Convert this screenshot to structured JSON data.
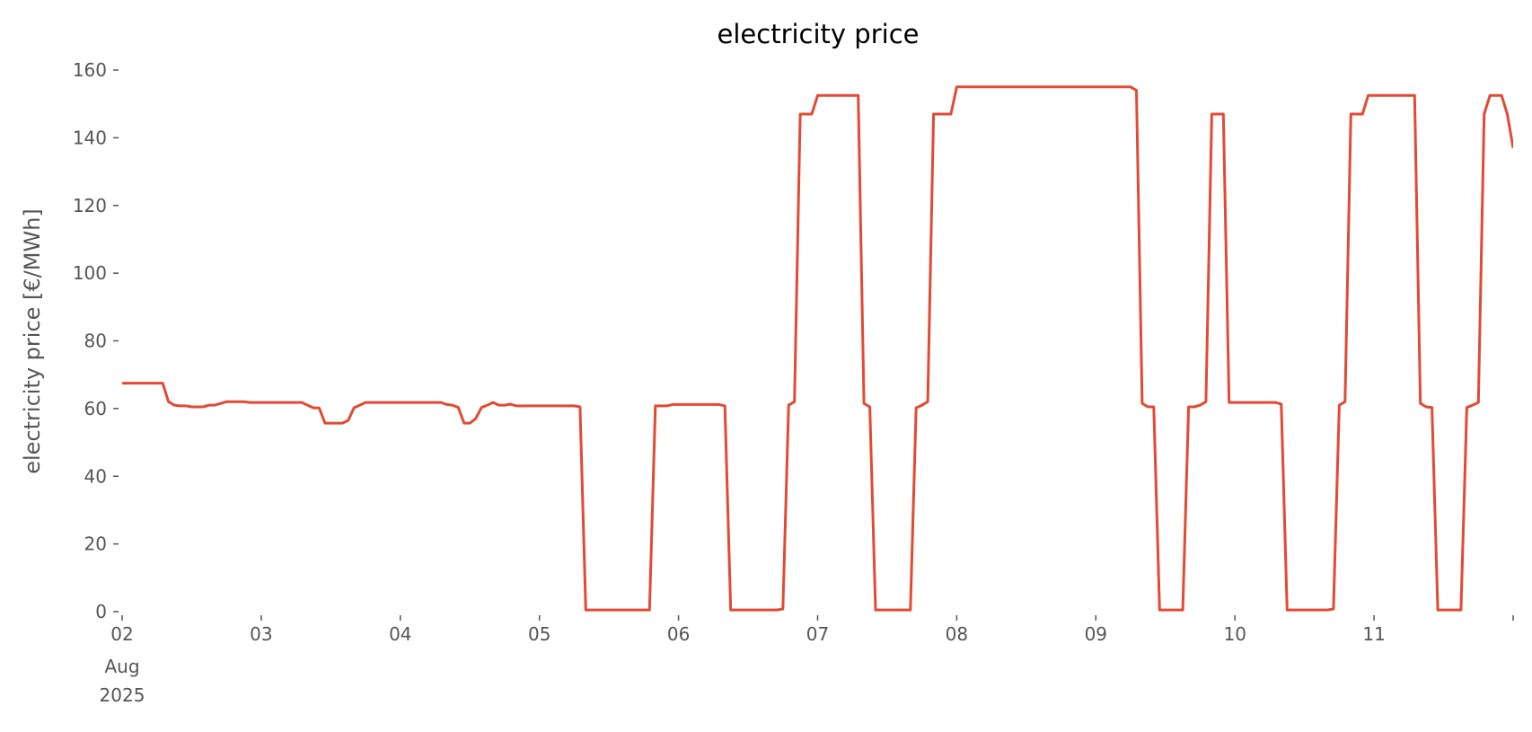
{
  "chart_data": {
    "type": "line",
    "title": "electricity price",
    "xlabel": "",
    "ylabel": "electricity price [€/MWh]",
    "ylim": [
      0,
      160
    ],
    "yticks": [
      0,
      20,
      40,
      60,
      80,
      100,
      120,
      140,
      160
    ],
    "xlim": [
      "2025-08-02 00:00",
      "2025-08-12 00:00"
    ],
    "xticks": [
      {
        "date": "2025-08-02",
        "label": "02",
        "sub1": "Aug",
        "sub2": "2025"
      },
      {
        "date": "2025-08-03",
        "label": "03"
      },
      {
        "date": "2025-08-04",
        "label": "04"
      },
      {
        "date": "2025-08-05",
        "label": "05"
      },
      {
        "date": "2025-08-06",
        "label": "06"
      },
      {
        "date": "2025-08-07",
        "label": "07"
      },
      {
        "date": "2025-08-08",
        "label": "08"
      },
      {
        "date": "2025-08-09",
        "label": "09"
      },
      {
        "date": "2025-08-10",
        "label": "10"
      },
      {
        "date": "2025-08-11",
        "label": "11"
      },
      {
        "date": "2025-08-12",
        "label": ""
      }
    ],
    "grid": false,
    "color": "#E24A33",
    "series": [
      {
        "start": "2025-08-02 00:00",
        "freq": "1h",
        "values": [
          67.5,
          67.5,
          67.5,
          67.5,
          67.5,
          67.5,
          67.5,
          67.5,
          62,
          61,
          60.8,
          60.8,
          60.5,
          60.5,
          60.5,
          61,
          61,
          61.5,
          62,
          62,
          62,
          62,
          61.8,
          61.8,
          61.8,
          61.8,
          61.8,
          61.8,
          61.8,
          61.8,
          61.8,
          61.8,
          61,
          60.2,
          60.2,
          55.7,
          55.7,
          55.7,
          55.7,
          56.5,
          60.2,
          61,
          61.8,
          61.8,
          61.8,
          61.8,
          61.8,
          61.8,
          61.8,
          61.8,
          61.8,
          61.8,
          61.8,
          61.8,
          61.8,
          61.8,
          61.2,
          61,
          60.3,
          55.7,
          55.7,
          57,
          60.3,
          61,
          61.8,
          61,
          61,
          61.3,
          60.8,
          60.8,
          60.8,
          60.8,
          60.8,
          60.8,
          60.8,
          60.8,
          60.8,
          60.8,
          60.8,
          60.5,
          0.5,
          0.5,
          0.5,
          0.5,
          0.5,
          0.5,
          0.5,
          0.5,
          0.5,
          0.5,
          0.5,
          0.5,
          60.8,
          60.8,
          60.8,
          61.2,
          61.2,
          61.2,
          61.2,
          61.2,
          61.2,
          61.2,
          61.2,
          61.2,
          60.8,
          0.5,
          0.5,
          0.5,
          0.5,
          0.5,
          0.5,
          0.5,
          0.5,
          0.5,
          0.8,
          61,
          62,
          147,
          147,
          147,
          152.5,
          152.5,
          152.5,
          152.5,
          152.5,
          152.5,
          152.5,
          152.5,
          61.5,
          60.5,
          0.5,
          0.5,
          0.5,
          0.5,
          0.5,
          0.5,
          0.5,
          60.2,
          61,
          62,
          147,
          147,
          147,
          147,
          155,
          155,
          155,
          155,
          155,
          155,
          155,
          155,
          155,
          155,
          155,
          155,
          155,
          155,
          155,
          155,
          155,
          155,
          155,
          155,
          155,
          155,
          155,
          155,
          155,
          155,
          155,
          155,
          155,
          155,
          155,
          154,
          61.5,
          60.5,
          60.5,
          0.5,
          0.5,
          0.5,
          0.5,
          0.5,
          60.5,
          60.5,
          61,
          62,
          147,
          147,
          147,
          61.8,
          61.8,
          61.8,
          61.8,
          61.8,
          61.8,
          61.8,
          61.8,
          61.8,
          61.3,
          0.5,
          0.5,
          0.5,
          0.5,
          0.5,
          0.5,
          0.5,
          0.5,
          0.8,
          61,
          62,
          147,
          147,
          147,
          152.5,
          152.5,
          152.5,
          152.5,
          152.5,
          152.5,
          152.5,
          152.5,
          152.5,
          61.5,
          60.5,
          60.3,
          0.5,
          0.5,
          0.5,
          0.5,
          0.5,
          60.3,
          61,
          61.8,
          147,
          152.5,
          152.5,
          152.5,
          147
        ]
      }
    ]
  }
}
